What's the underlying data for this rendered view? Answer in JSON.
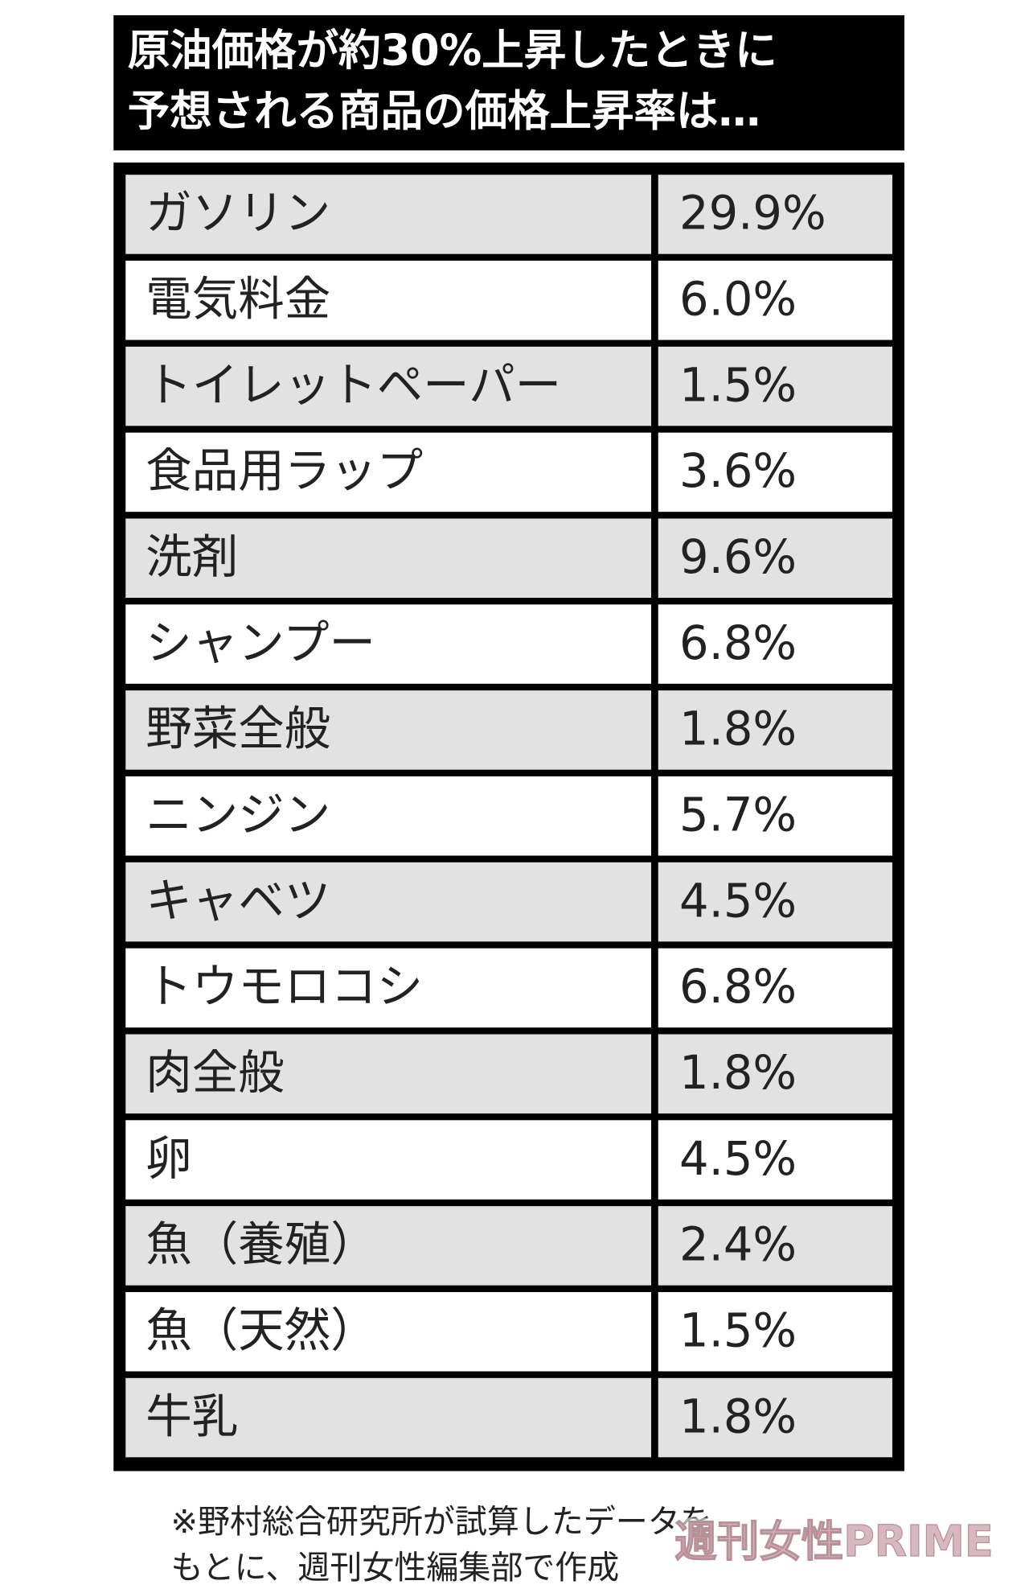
{
  "header": {
    "title_lines": [
      "原油価格が約30%上昇したときに",
      "予想される商品の価格上昇率は…"
    ]
  },
  "table": {
    "rows": [
      [
        "ガソリン",
        "29.9%"
      ],
      [
        "電気料金",
        "6.0%"
      ],
      [
        "トイレットペーパー",
        "1.5%"
      ],
      [
        "食品用ラップ",
        "3.6%"
      ],
      [
        "洗剤",
        "9.6%"
      ],
      [
        "シャンプー",
        "6.8%"
      ],
      [
        "野菜全般",
        "1.8%"
      ],
      [
        "ニンジン",
        "5.7%"
      ],
      [
        "キャベツ",
        "4.5%"
      ],
      [
        "トウモロコシ",
        "6.8%"
      ],
      [
        "肉全般",
        "1.8%"
      ],
      [
        "卵",
        "4.5%"
      ],
      [
        "魚（養殖）",
        "2.4%"
      ],
      [
        "魚（天然）",
        "1.5%"
      ],
      [
        "牛乳",
        "1.8%"
      ]
    ]
  },
  "footnote": {
    "lines": [
      "※野村総合研究所が試算したデータを",
      "もとに、週刊女性編集部で作成"
    ]
  },
  "watermark": "週刊女性PRIME"
}
